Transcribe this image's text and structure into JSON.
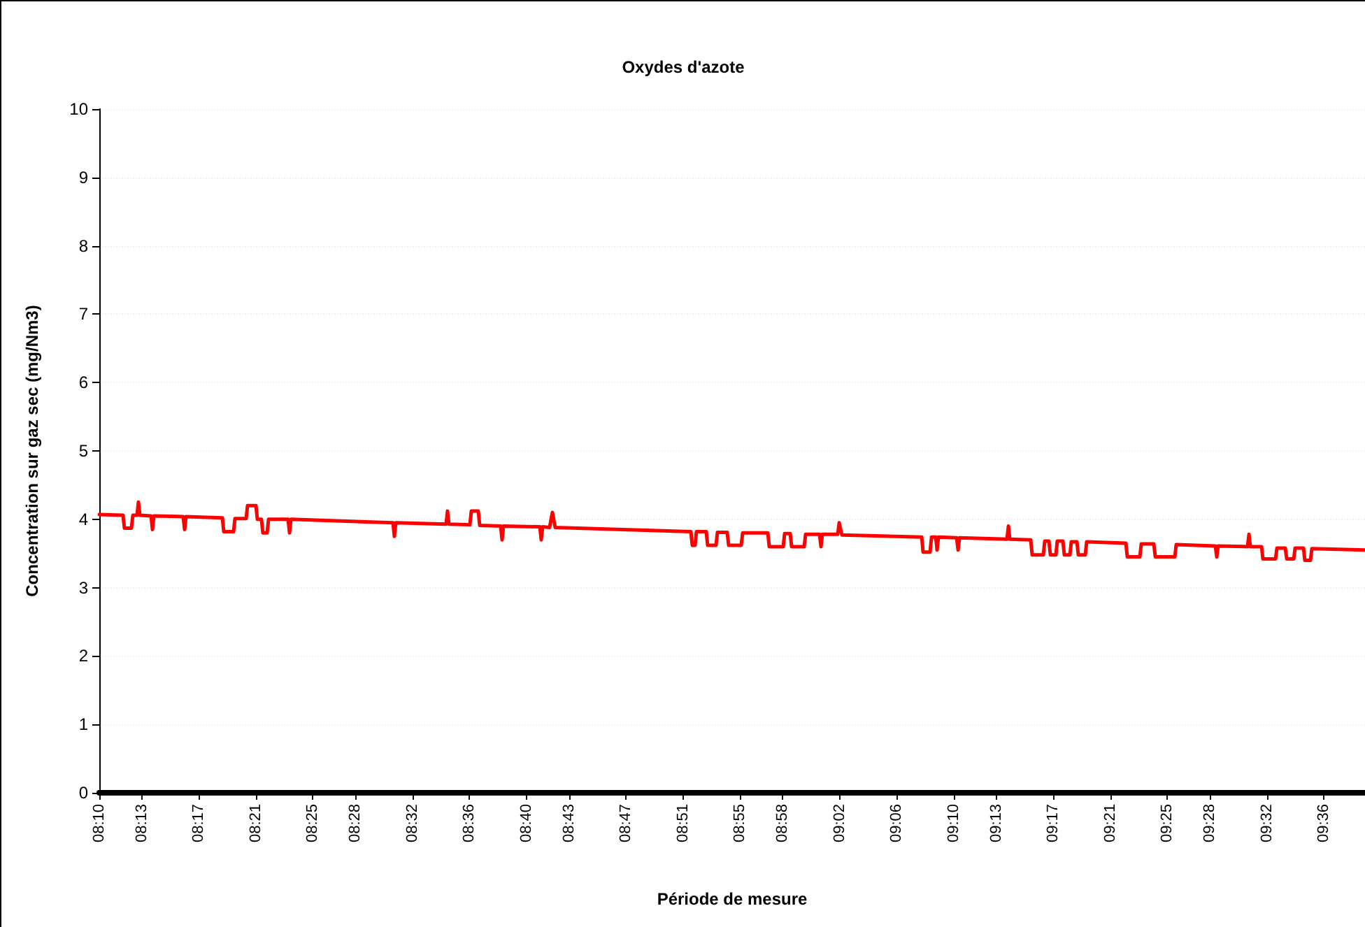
{
  "chart_data": {
    "type": "line",
    "title": "Oxydes d'azote",
    "xlabel": "Période de mesure",
    "ylabel": "Concentration sur gaz sec (mg/Nm3)",
    "xlim": [
      8.1667,
      9.6483
    ],
    "xticks": [
      {
        "value": 8.1667,
        "label": "08:10"
      },
      {
        "value": 8.2167,
        "label": "08:13"
      },
      {
        "value": 8.2833,
        "label": "08:17"
      },
      {
        "value": 8.35,
        "label": "08:21"
      },
      {
        "value": 8.4167,
        "label": "08:25"
      },
      {
        "value": 8.4667,
        "label": "08:28"
      },
      {
        "value": 8.5333,
        "label": "08:32"
      },
      {
        "value": 8.6,
        "label": "08:36"
      },
      {
        "value": 8.6667,
        "label": "08:40"
      },
      {
        "value": 8.7167,
        "label": "08:43"
      },
      {
        "value": 8.7833,
        "label": "08:47"
      },
      {
        "value": 8.85,
        "label": "08:51"
      },
      {
        "value": 8.9167,
        "label": "08:55"
      },
      {
        "value": 8.9667,
        "label": "08:58"
      },
      {
        "value": 9.0333,
        "label": "09:02"
      },
      {
        "value": 9.1,
        "label": "09:06"
      },
      {
        "value": 9.1667,
        "label": "09:10"
      },
      {
        "value": 9.2167,
        "label": "09:13"
      },
      {
        "value": 9.2833,
        "label": "09:17"
      },
      {
        "value": 9.35,
        "label": "09:21"
      },
      {
        "value": 9.4167,
        "label": "09:25"
      },
      {
        "value": 9.4667,
        "label": "09:28"
      },
      {
        "value": 9.5333,
        "label": "09:32"
      },
      {
        "value": 9.6,
        "label": "09:36"
      }
    ],
    "ylim": [
      0,
      10
    ],
    "yticks": [
      0,
      1,
      2,
      3,
      4,
      5,
      6,
      7,
      8,
      9,
      10
    ],
    "grid": "y",
    "marker": "none",
    "line_style": "solid",
    "series": [
      {
        "color": "#ff0000",
        "x": [
          8.1667,
          8.1945,
          8.1961,
          8.2043,
          8.206,
          8.2109,
          8.2125,
          8.2142,
          8.2273,
          8.2289,
          8.2306,
          8.2649,
          8.2666,
          8.2682,
          8.3108,
          8.3124,
          8.3239,
          8.3255,
          8.3386,
          8.3402,
          8.3501,
          8.3517,
          8.3565,
          8.3582,
          8.3632,
          8.3648,
          8.3877,
          8.3894,
          8.391,
          8.5105,
          8.5121,
          8.5138,
          8.5727,
          8.5743,
          8.576,
          8.6005,
          8.6022,
          8.6103,
          8.612,
          8.6366,
          8.6382,
          8.6398,
          8.6824,
          8.684,
          8.6857,
          8.6938,
          8.6971,
          8.7004,
          8.8592,
          8.8608,
          8.8641,
          8.8657,
          8.8772,
          8.8788,
          8.8886,
          8.8903,
          8.9017,
          8.9034,
          8.9181,
          8.9198,
          8.9493,
          8.9509,
          8.9673,
          8.9689,
          8.9755,
          8.9771,
          8.9918,
          8.9935,
          9.0098,
          9.0115,
          9.0131,
          9.0311,
          9.0328,
          9.036,
          9.1294,
          9.131,
          9.1392,
          9.1409,
          9.1458,
          9.1474,
          9.149,
          9.1703,
          9.172,
          9.1736,
          9.2292,
          9.2309,
          9.2325,
          9.257,
          9.2587,
          9.2718,
          9.2734,
          9.2783,
          9.28,
          9.2865,
          9.2881,
          9.2947,
          9.2963,
          9.3029,
          9.3045,
          9.3111,
          9.3127,
          9.3209,
          9.3225,
          9.3684,
          9.37,
          9.3848,
          9.3864,
          9.4011,
          9.4028,
          9.4257,
          9.4273,
          9.4731,
          9.4748,
          9.4764,
          9.5108,
          9.5125,
          9.5141,
          9.5272,
          9.5288,
          9.5436,
          9.5452,
          9.555,
          9.5567,
          9.5649,
          9.5665,
          9.5763,
          9.5779,
          9.5845,
          9.5861,
          9.6483
        ],
        "values": [
          4.07,
          4.06,
          3.87,
          3.87,
          4.06,
          4.06,
          4.25,
          4.06,
          4.05,
          3.85,
          4.05,
          4.04,
          3.85,
          4.04,
          4.02,
          3.82,
          3.82,
          4.01,
          4.01,
          4.2,
          4.2,
          4.0,
          4.0,
          3.8,
          3.8,
          4.0,
          4.0,
          3.8,
          4.0,
          3.95,
          3.75,
          3.95,
          3.93,
          4.12,
          3.93,
          3.92,
          4.12,
          4.12,
          3.91,
          3.9,
          3.7,
          3.9,
          3.89,
          3.7,
          3.89,
          3.88,
          4.1,
          3.88,
          3.82,
          3.62,
          3.62,
          3.82,
          3.82,
          3.62,
          3.62,
          3.81,
          3.81,
          3.62,
          3.62,
          3.8,
          3.8,
          3.6,
          3.6,
          3.79,
          3.79,
          3.6,
          3.6,
          3.78,
          3.78,
          3.6,
          3.78,
          3.78,
          3.95,
          3.77,
          3.74,
          3.52,
          3.52,
          3.74,
          3.74,
          3.55,
          3.74,
          3.73,
          3.55,
          3.73,
          3.71,
          3.9,
          3.71,
          3.7,
          3.48,
          3.48,
          3.68,
          3.68,
          3.48,
          3.48,
          3.68,
          3.68,
          3.48,
          3.48,
          3.67,
          3.67,
          3.48,
          3.48,
          3.67,
          3.65,
          3.45,
          3.45,
          3.64,
          3.64,
          3.45,
          3.45,
          3.63,
          3.61,
          3.45,
          3.61,
          3.6,
          3.78,
          3.6,
          3.6,
          3.42,
          3.42,
          3.58,
          3.58,
          3.42,
          3.42,
          3.58,
          3.58,
          3.4,
          3.4,
          3.57,
          3.55
        ]
      }
    ]
  }
}
